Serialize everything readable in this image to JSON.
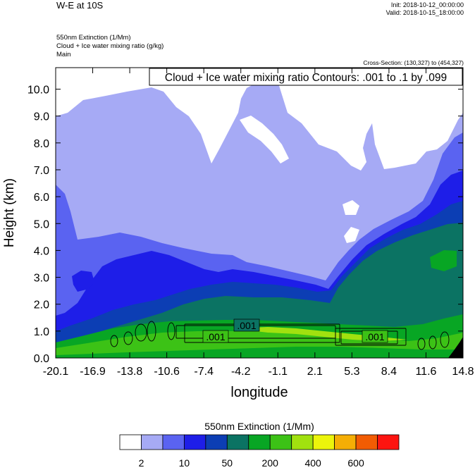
{
  "header": {
    "title": "W-E at 10S",
    "init": "Init: 2018-10-12_00:00:00",
    "valid": "Valid: 2018-10-15_18:00:00",
    "variables": [
      "550nm Extinction   (1/Mm)",
      "Cloud + Ice water mixing ratio   (g/kg)",
      "Main"
    ],
    "cross_section": "Cross-Section: (130,327) to (454,327)"
  },
  "chart_data": {
    "type": "heatmap",
    "title": "W-E at 10S",
    "xlabel": "longitude",
    "ylabel": "Height (km)",
    "xlim": [
      -20.1,
      14.8
    ],
    "ylim": [
      0.0,
      10.8
    ],
    "x_ticks": [
      "-20.1",
      "-16.9",
      "-13.8",
      "-10.6",
      "-7.4",
      "-4.2",
      "-1.1",
      "2.1",
      "5.3",
      "8.4",
      "11.6",
      "14.8"
    ],
    "y_ticks": [
      "0.0",
      "1.0",
      "2.0",
      "3.0",
      "4.0",
      "5.0",
      "6.0",
      "7.0",
      "8.0",
      "9.0",
      "10.0"
    ],
    "contour_overlay": {
      "label": "Cloud + Ice water mixing ratio Contours: .001 to .1 by .099",
      "contour_labels": [
        ".001",
        ".001",
        ".001"
      ]
    },
    "colorbar": {
      "title": "550nm Extinction  (1/Mm)",
      "colors": [
        "#ffffff",
        "#a6aaf5",
        "#5a63f1",
        "#1e1ee8",
        "#0c3eb4",
        "#0b7363",
        "#08a624",
        "#3cc216",
        "#a1e10f",
        "#ecf50b",
        "#f5ae05",
        "#f25c03",
        "#fd1410"
      ],
      "tick_labels": [
        "2",
        "10",
        "50",
        "200",
        "400",
        "600"
      ]
    },
    "colors": {
      "white": "#ffffff",
      "level1": "#a6aaf5",
      "level2": "#5a63f1",
      "level3": "#1e1ee8",
      "level4": "#0c3eb4",
      "level5": "#0b7363",
      "level6": "#08a624",
      "level7": "#3cc216",
      "level8": "#a1e10f"
    }
  }
}
